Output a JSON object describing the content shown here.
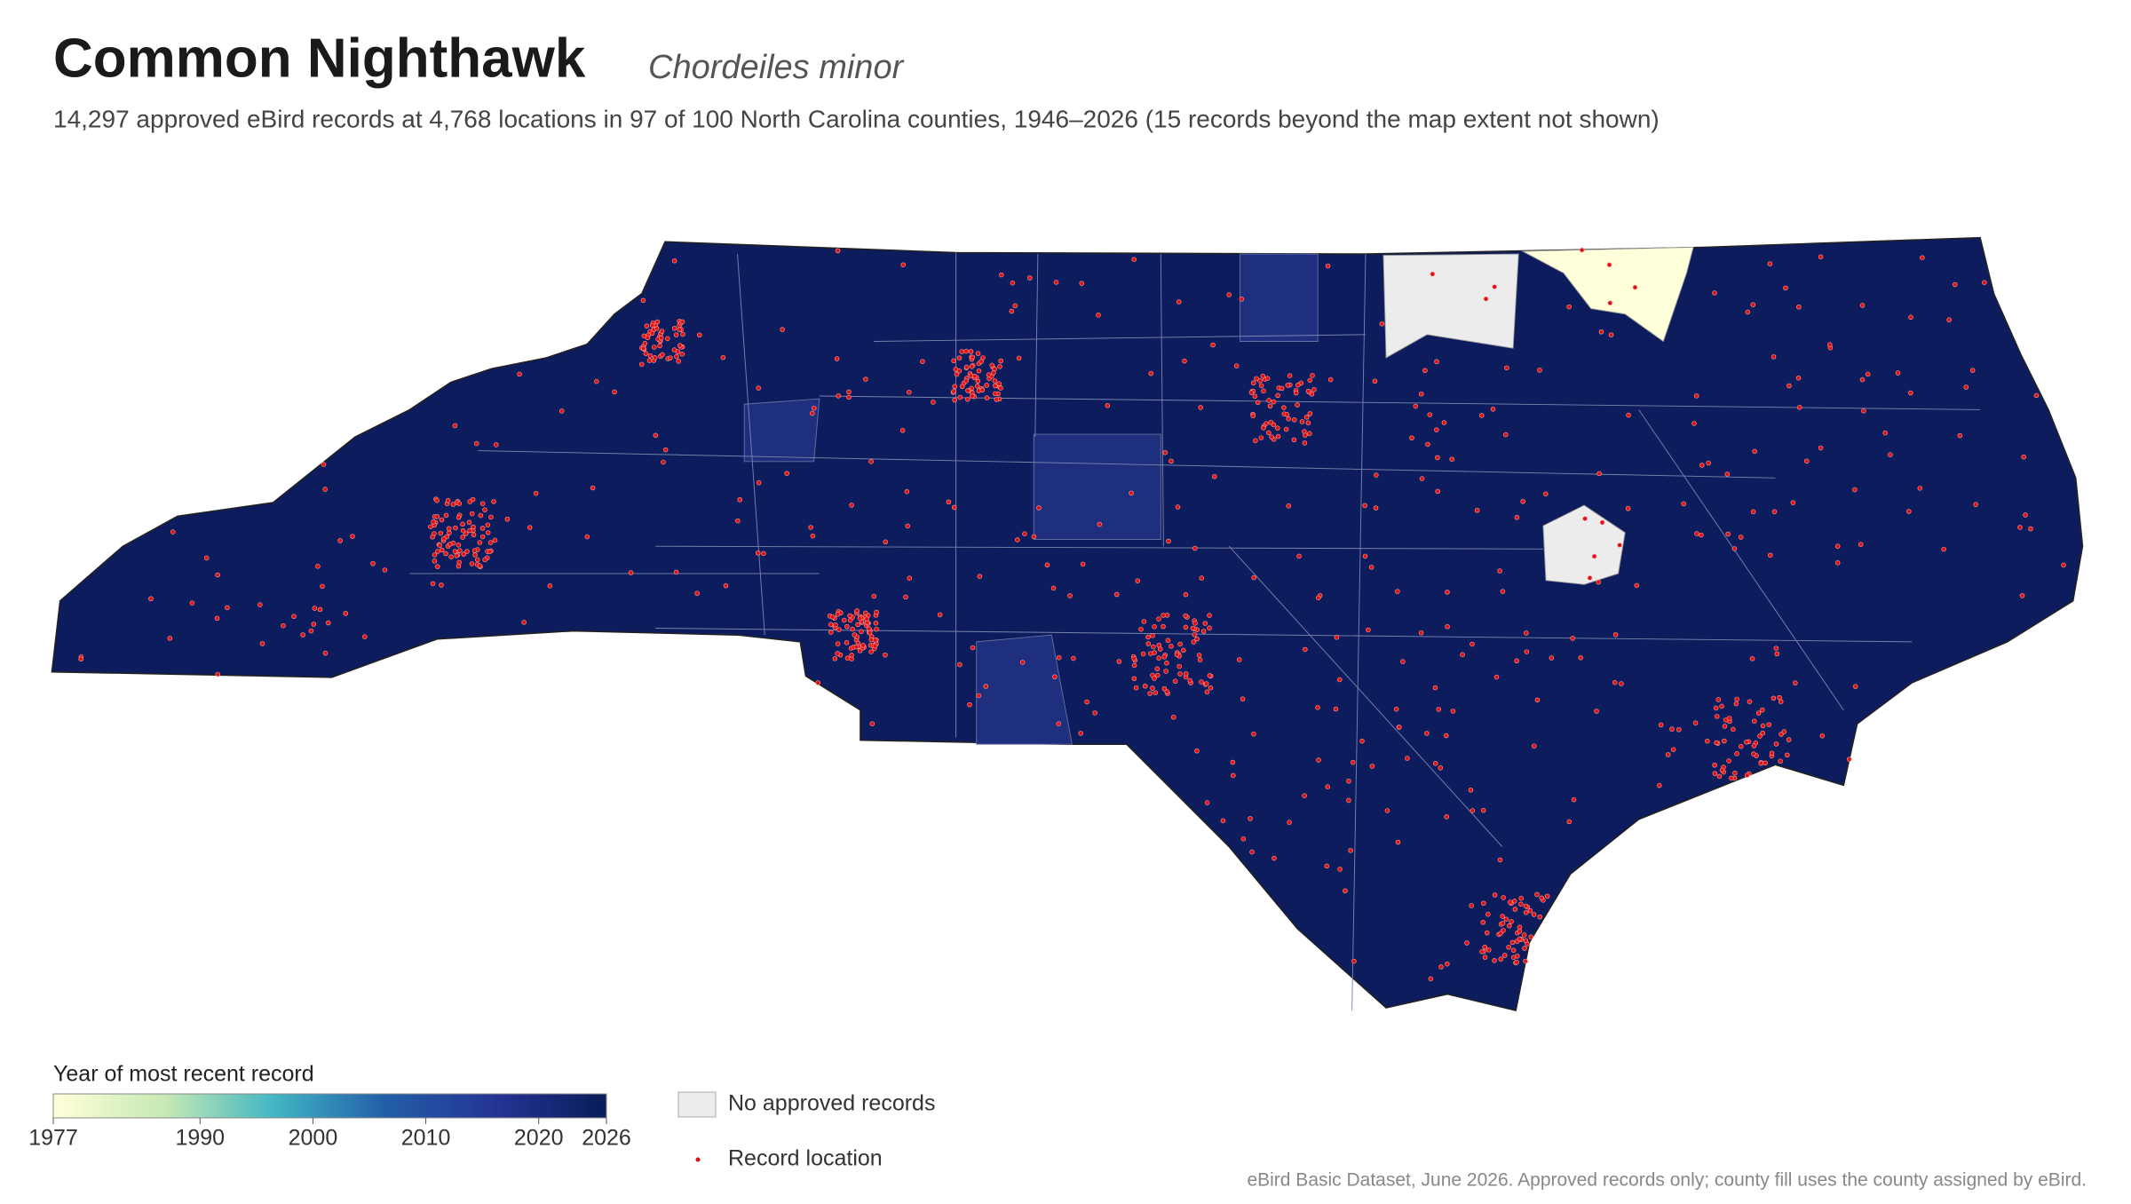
{
  "header": {
    "title": "Common Nighthawk",
    "species": "Chordeiles minor",
    "subtitle": "14,297 approved eBird records at 4,768 locations in 97 of 100 North Carolina counties, 1946–2026 (15 records beyond the map extent not shown)"
  },
  "legend": {
    "title": "Year of most recent record",
    "range": [
      1977,
      2026
    ],
    "ticks": [
      1977,
      1990,
      2000,
      2010,
      2020,
      2026
    ],
    "colors": [
      "#ffffd9",
      "#c7e9b4",
      "#41b6c4",
      "#225ea8",
      "#253494",
      "#081d58"
    ],
    "no_records": "No approved records",
    "record_location": "Record location"
  },
  "source": "eBird Basic Dataset, June 2026. Approved records only; county fill uses the county assigned by eBird."
}
